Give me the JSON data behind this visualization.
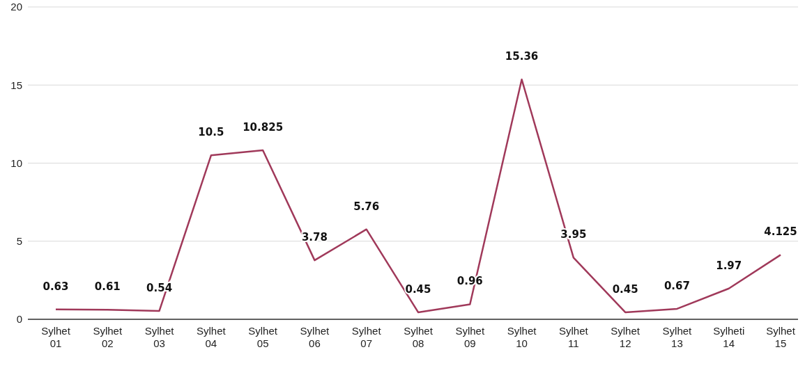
{
  "chart_data": {
    "type": "line",
    "categories": [
      "Sylhet 01",
      "Sylhet 02",
      "Sylhet 03",
      "Sylhet 04",
      "Sylhet 05",
      "Sylhet 06",
      "Sylhet 07",
      "Sylhet 08",
      "Sylhet 09",
      "Sylhet 10",
      "Sylhet 11",
      "Sylhet 12",
      "Sylhet 13",
      "Sylheti 14",
      "Sylhet 15"
    ],
    "series": [
      {
        "color": "#a0395a",
        "values": [
          0.63,
          0.61,
          0.54,
          10.5,
          10.825,
          3.78,
          5.76,
          0.45,
          0.96,
          15.36,
          3.95,
          0.45,
          0.67,
          1.97,
          4.125
        ]
      }
    ],
    "ylim": [
      0,
      20
    ],
    "yticks": [
      0,
      5,
      10,
      15,
      20
    ],
    "grid": "y",
    "data_labels": true,
    "marker": "none"
  }
}
